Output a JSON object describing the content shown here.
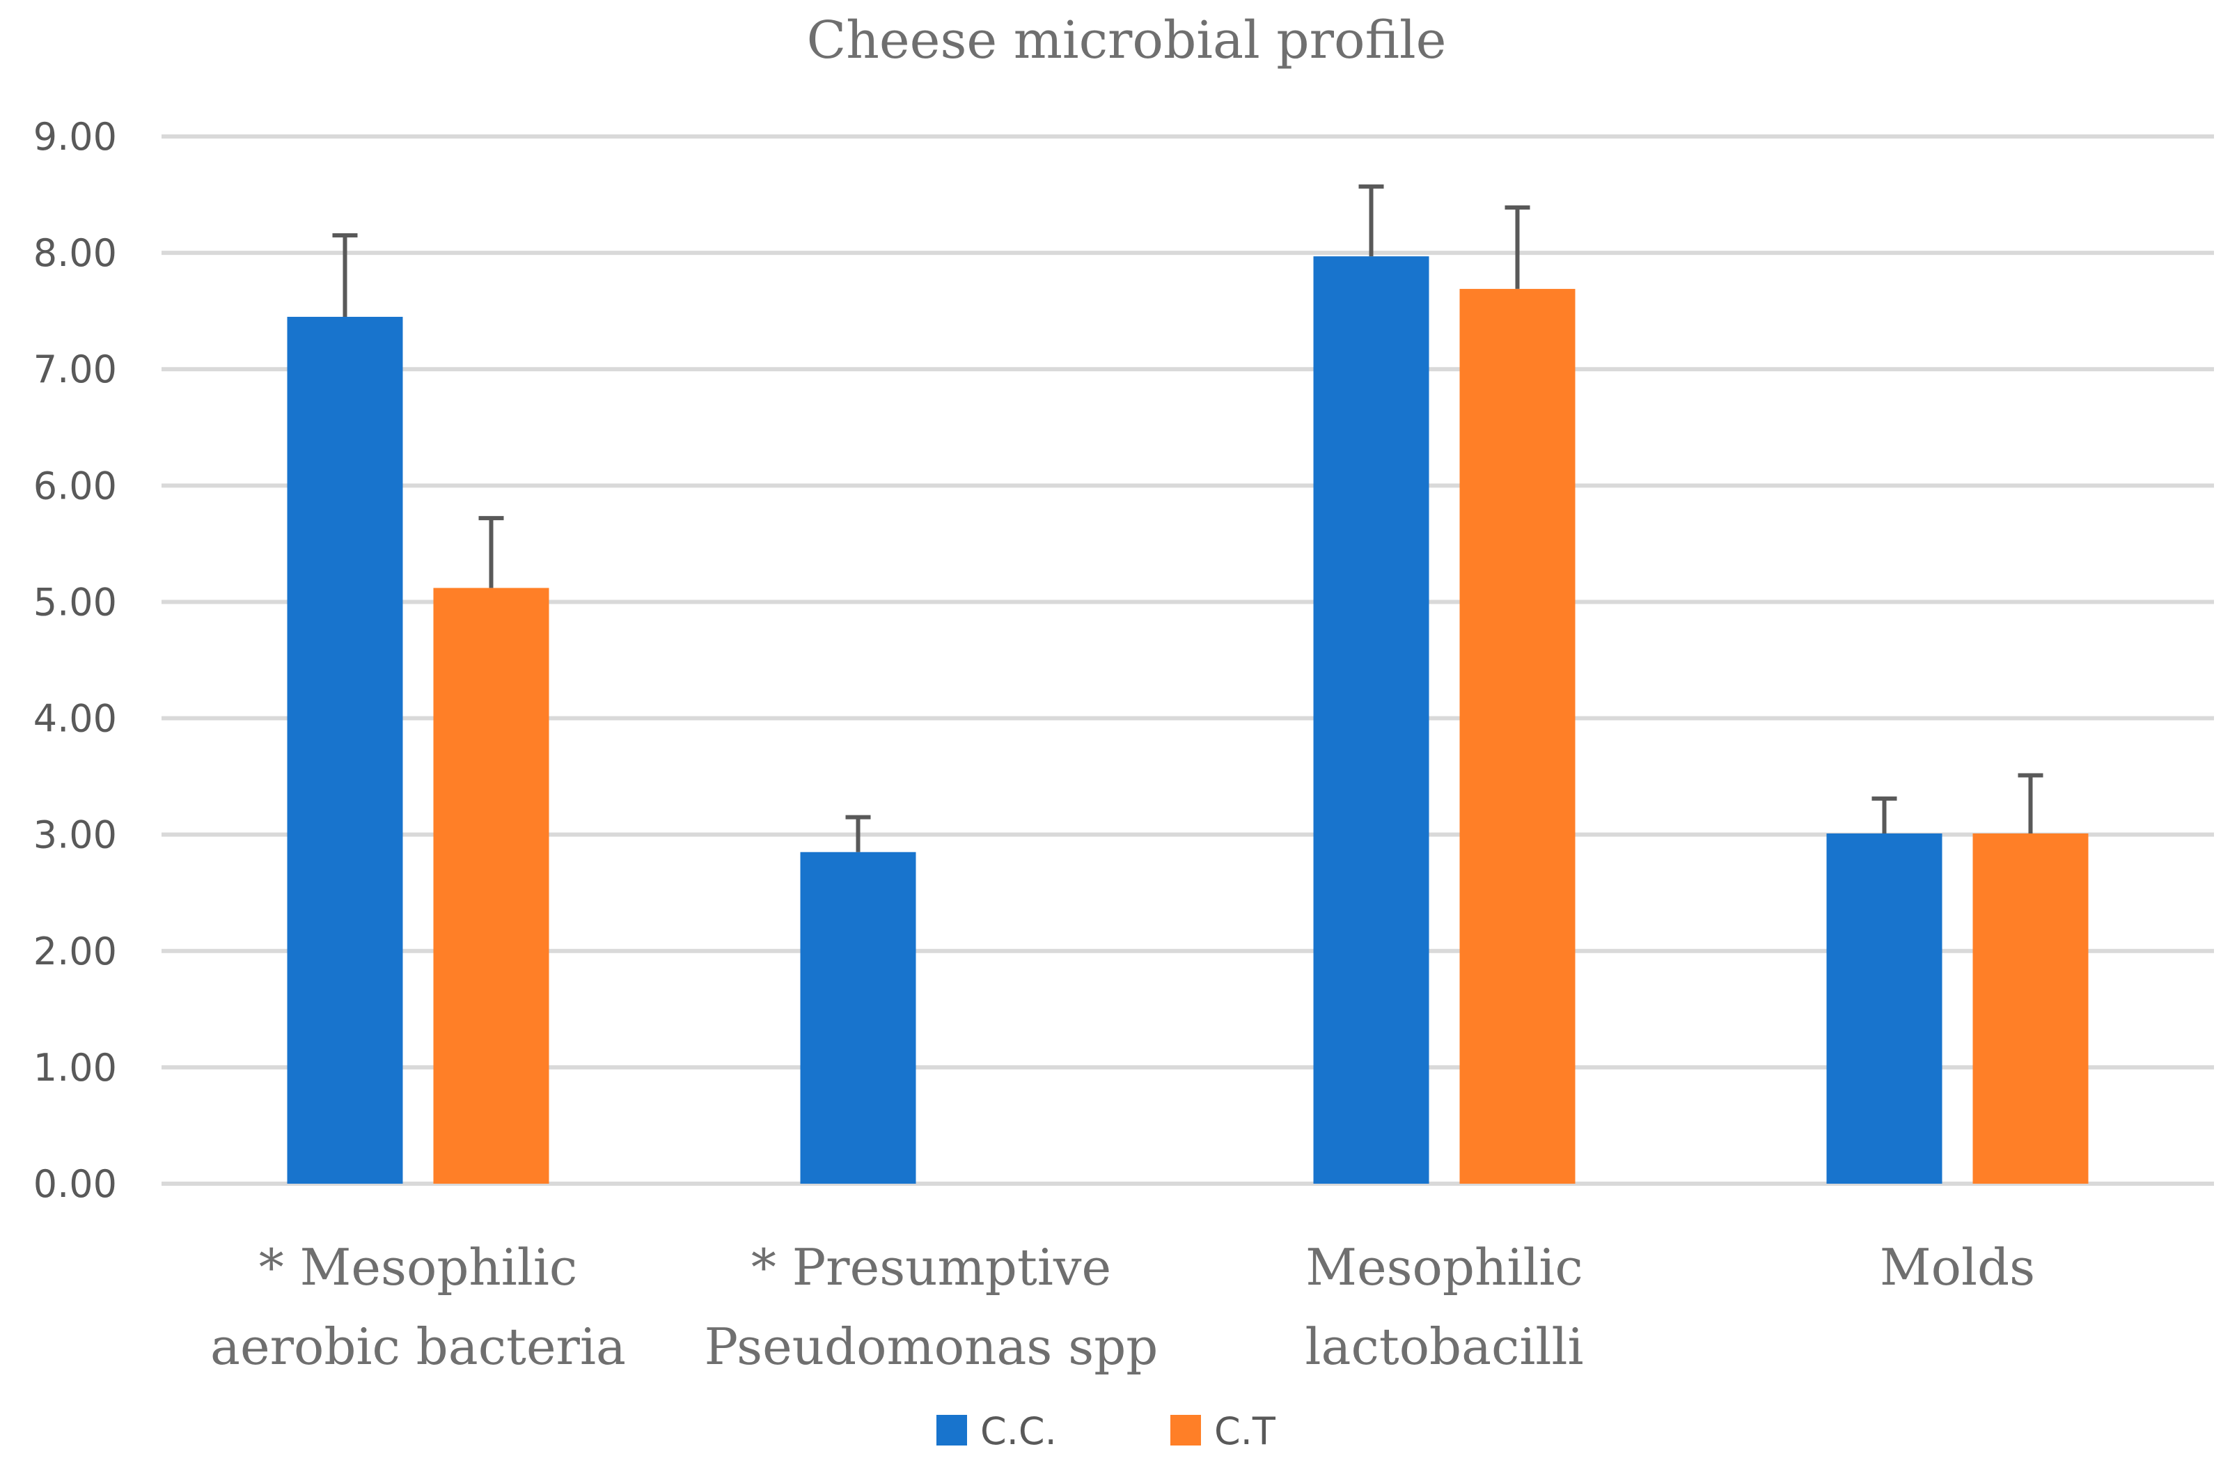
{
  "chart_data": {
    "type": "bar",
    "title": "Cheese microbial profile",
    "categories": [
      [
        "* Mesophilic",
        "aerobic bacteria"
      ],
      [
        "* Presumptive",
        "Pseudomonas spp"
      ],
      [
        "Mesophilic",
        "lactobacilli"
      ],
      [
        "Molds"
      ]
    ],
    "series": [
      {
        "name": "C.C.",
        "color": "#1874CD",
        "values": [
          7.45,
          2.85,
          7.97,
          3.01
        ],
        "errors": [
          0.7,
          0.3,
          0.6,
          0.3
        ]
      },
      {
        "name": "C.T",
        "color": "#FF7F27",
        "values": [
          5.12,
          null,
          7.69,
          3.01
        ],
        "errors": [
          0.6,
          null,
          0.7,
          0.5
        ]
      }
    ],
    "y_ticks": [
      "0.00",
      "1.00",
      "2.00",
      "3.00",
      "4.00",
      "5.00",
      "6.00",
      "7.00",
      "8.00",
      "9.00"
    ],
    "ylim": [
      0,
      9
    ],
    "xlabel": "",
    "ylabel": "",
    "grid": true,
    "legend_position": "bottom"
  }
}
